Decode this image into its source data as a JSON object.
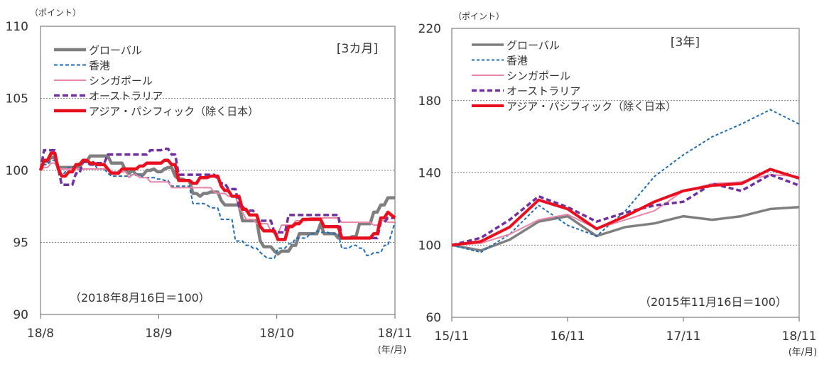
{
  "chart_data": [
    {
      "type": "line",
      "unit_label": "（ポイント）",
      "period_label": "[3カ月]",
      "note": "（2018年8月16日＝100）",
      "x_unit_label": "(年/月)",
      "ylim": [
        90,
        110
      ],
      "yticks": [
        "110",
        "105",
        "100",
        "95",
        "90"
      ],
      "xticks": [
        "18/8",
        "18/9",
        "18/10",
        "18/11"
      ],
      "grid": true,
      "legend_position": "top-left",
      "x": [
        0,
        5,
        10,
        15,
        20,
        25,
        30,
        35,
        40,
        45,
        50,
        55,
        60,
        65,
        70,
        75,
        80,
        85,
        90,
        95,
        100,
        105,
        110,
        115,
        120,
        125,
        130,
        135,
        140,
        145,
        150,
        155,
        160,
        165,
        170,
        175,
        180,
        185,
        190,
        195,
        200,
        205,
        210,
        215,
        220,
        225,
        230,
        235,
        240,
        245,
        250,
        255,
        260,
        265,
        270,
        275,
        280,
        285,
        290,
        295,
        300,
        305,
        310,
        315,
        320,
        325,
        330,
        335,
        340,
        345,
        350,
        355,
        360,
        365,
        370,
        375,
        380,
        385,
        390,
        395,
        400,
        405,
        410,
        415,
        420,
        425,
        430,
        435,
        440,
        445,
        450,
        455,
        460,
        465,
        470,
        475,
        480,
        485,
        490,
        495,
        500
      ],
      "series": [
        {
          "name": "グローバル",
          "color": "#7f7f7f",
          "width": 4.5,
          "dash": "",
          "values": [
            100,
            100.6,
            100.6,
            100.9,
            100.9,
            100.2,
            100.2,
            100.2,
            100.2,
            100.2,
            100.2,
            100.2,
            100.6,
            100.6,
            101,
            101,
            101,
            101,
            101,
            101,
            100.5,
            100.5,
            100.5,
            100.5,
            100,
            99.8,
            100,
            99.7,
            99.7,
            99.7,
            100,
            100,
            100.1,
            99.9,
            99.9,
            100.1,
            100.2,
            100.2,
            99.6,
            99.4,
            99.4,
            99.3,
            99.3,
            98.4,
            98.4,
            98.2,
            98.4,
            98.4,
            98.5,
            98.5,
            98.5,
            97.9,
            97.6,
            97.6,
            97.6,
            97.6,
            97.6,
            96.5,
            96.5,
            96.5,
            96.5,
            96.5,
            95.1,
            94.7,
            94.7,
            94.7,
            94.4,
            94.2,
            94.4,
            94.4,
            94.4,
            94.8,
            94.8,
            95.6,
            95.6,
            95.6,
            95.6,
            95.6,
            95.6,
            96.3,
            95.6,
            95.6,
            95.6,
            95.6,
            95.3,
            95.3,
            95.3,
            95.3,
            95.4,
            95.4,
            96.3,
            96.3,
            96.3,
            96.3,
            97.1,
            97.1,
            97.6,
            97.6,
            98.1,
            98.1,
            98.1
          ]
        },
        {
          "name": "香港",
          "color": "#1f6db4",
          "width": 2,
          "dash": "5 3",
          "values": [
            100,
            100.4,
            100.4,
            100.7,
            100.7,
            100.1,
            99.6,
            99.9,
            100.2,
            100.2,
            100.4,
            100.5,
            100.5,
            100.7,
            100.6,
            100.6,
            100.1,
            100.1,
            100.1,
            99.8,
            99.6,
            99.6,
            99.6,
            99.6,
            99.6,
            99.6,
            99.7,
            99.7,
            99.7,
            99.5,
            99.5,
            99.5,
            99.5,
            99.4,
            99.4,
            99.3,
            99.3,
            98.9,
            98.9,
            98.9,
            98.9,
            98.9,
            98.9,
            97.7,
            97.7,
            97.7,
            97.7,
            97.6,
            97.4,
            97.4,
            97.4,
            96.6,
            96.6,
            96.6,
            96.6,
            95.1,
            95.1,
            95.1,
            94.8,
            94.8,
            94.6,
            94.6,
            94.3,
            94.1,
            93.9,
            93.9,
            93.9,
            94.6,
            94.6,
            94.6,
            94.9,
            94.9,
            95.3,
            95.3,
            95.3,
            95.3,
            95.6,
            95.6,
            95.8,
            95.7,
            95.7,
            95.7,
            95.6,
            95.6,
            95.6,
            94.6,
            94.6,
            94.6,
            94.8,
            94.8,
            94.6,
            94.6,
            94.1,
            94.1,
            94.3,
            94.3,
            94.3,
            94.8,
            94.8,
            95.6,
            96.4
          ]
        },
        {
          "name": "シンガポール",
          "color": "#ea84a7",
          "width": 2,
          "dash": "",
          "values": [
            100,
            100.2,
            100.2,
            100.5,
            100.5,
            100.1,
            100.1,
            100.1,
            100.1,
            100.1,
            100.1,
            100.1,
            100.1,
            100.1,
            100.1,
            100.1,
            100.1,
            100.1,
            100.1,
            100.1,
            99.9,
            99.9,
            99.9,
            99.9,
            99.9,
            99.5,
            99.7,
            99.7,
            99.5,
            99.5,
            99.5,
            99.2,
            99.2,
            99.2,
            99.2,
            99.2,
            99.2,
            98.8,
            98.8,
            98.8,
            98.8,
            98.8,
            98.8,
            98.8,
            98.8,
            98.8,
            98.8,
            98.8,
            98.8,
            98.5,
            98.4,
            98.4,
            98.4,
            98.2,
            98.2,
            98.2,
            97.4,
            97.1,
            96.6,
            96.6,
            96.6,
            96.3,
            96.3,
            96.3,
            96.3,
            95.8,
            95.6,
            95.6,
            96.2,
            96.2,
            96.2,
            96.2,
            96.5,
            96.5,
            96.5,
            96.5,
            96.7,
            96.7,
            96.7,
            96.7,
            96.7,
            96.7,
            96.7,
            96.7,
            96.7,
            96.4,
            96.4,
            96.4,
            96.4,
            96.4,
            96.4,
            96.4,
            96.4,
            96.4,
            96.2,
            96.2,
            96.5,
            96.5,
            96.4,
            96.4,
            96.4
          ]
        },
        {
          "name": "オーストラリア",
          "color": "#7030a0",
          "width": 3.5,
          "dash": "8 4",
          "values": [
            100,
            101.4,
            101.4,
            101.4,
            101.4,
            100.1,
            99,
            99,
            99,
            99,
            99.8,
            99.8,
            100.6,
            100.6,
            100.4,
            100.4,
            100.5,
            100.5,
            100.5,
            101.1,
            101.1,
            101.1,
            101.1,
            101.1,
            101.1,
            101.1,
            101.1,
            101.1,
            101.1,
            101.1,
            101.1,
            101.4,
            101.4,
            101.4,
            101.4,
            101.5,
            101.5,
            101.1,
            101.1,
            99.7,
            99.7,
            99.7,
            99.7,
            99.7,
            99.7,
            99.7,
            99.7,
            99.7,
            99.7,
            99.7,
            99.4,
            99.1,
            99.1,
            98.7,
            98.7,
            98.7,
            97.5,
            97.5,
            97.2,
            97.2,
            97.2,
            96.8,
            96.5,
            96.5,
            96.5,
            96.5,
            95.7,
            95.7,
            95.7,
            95.7,
            96.9,
            96.9,
            96.9,
            96.9,
            96.9,
            96.9,
            96.9,
            96.9,
            96.9,
            96.9,
            96.9,
            96.9,
            96.9,
            96.9,
            96.9,
            95.3,
            95.3,
            95.3,
            95.3,
            95.3,
            95.3,
            95.3,
            95.3,
            95.3,
            95.3,
            95.3,
            96.4,
            96.4,
            96.7,
            96.7,
            96.7
          ]
        },
        {
          "name": "アジア・パシフィック（除く日本）",
          "color": "#e8101e",
          "width": 4.5,
          "dash": "",
          "values": [
            100,
            100.7,
            100.7,
            101.2,
            101.2,
            100.1,
            99.6,
            99.6,
            99.9,
            99.9,
            100.4,
            100.4,
            100.7,
            100.7,
            100.5,
            100.5,
            100.4,
            100.4,
            100.4,
            100.1,
            99.8,
            99.8,
            99.8,
            100.1,
            100.1,
            100.1,
            100.1,
            100.1,
            100.3,
            100.3,
            100.5,
            100.5,
            100.5,
            100.5,
            100.5,
            100.7,
            100.7,
            100.4,
            100.4,
            99.3,
            99.3,
            99.3,
            99.3,
            99.1,
            99.1,
            99.5,
            99.5,
            99.5,
            99.6,
            99.6,
            99.6,
            98.9,
            98.6,
            98.6,
            98.2,
            98.2,
            98.2,
            97.3,
            97.3,
            96.9,
            96.9,
            96.9,
            96.1,
            95.8,
            95.8,
            95.8,
            95.8,
            95.2,
            95.2,
            95.2,
            96.1,
            96.1,
            96.3,
            96.3,
            96.6,
            96.6,
            96.6,
            96.6,
            96.6,
            96.6,
            96.1,
            96.1,
            96.1,
            96.1,
            96.1,
            95.3,
            95.3,
            95.3,
            95.3,
            95.3,
            95.3,
            95.3,
            95.3,
            95.3,
            95.6,
            95.6,
            96.7,
            96.7,
            97.1,
            96.9,
            96.7
          ]
        }
      ]
    },
    {
      "type": "line",
      "unit_label": "（ポイント）",
      "period_label": "[3年]",
      "note": "（2015年11月16日＝100）",
      "x_unit_label": "(年/月)",
      "ylim": [
        60,
        220
      ],
      "yticks": [
        "220",
        "180",
        "140",
        "100",
        "60"
      ],
      "xticks": [
        "15/11",
        "16/11",
        "17/11",
        "18/11"
      ],
      "grid": true,
      "legend_position": "top-left",
      "x": [
        0,
        3,
        6,
        9,
        12,
        15,
        18,
        21,
        24,
        27,
        30,
        33,
        36
      ],
      "series": [
        {
          "name": "グローバル",
          "color": "#7f7f7f",
          "width": 3.5,
          "dash": "",
          "values": [
            100,
            97,
            103,
            113,
            116,
            105,
            110,
            112,
            116,
            114,
            116,
            120,
            121
          ]
        },
        {
          "name": "香港",
          "color": "#1f6db4",
          "width": 2,
          "dash": "4 3",
          "values": [
            100,
            96,
            106,
            122,
            111,
            105,
            119,
            138,
            150,
            160,
            167,
            175,
            167
          ]
        },
        {
          "name": "シンガポール",
          "color": "#ea84a7",
          "width": 2,
          "dash": "",
          "values": [
            100,
            101,
            106,
            114,
            117,
            109,
            114,
            119,
            130,
            134,
            135,
            139,
            138
          ]
        },
        {
          "name": "オーストラリア",
          "color": "#7030a0",
          "width": 3.5,
          "dash": "7 4",
          "values": [
            100,
            104,
            114,
            127,
            121,
            113,
            118,
            122,
            124,
            134,
            130,
            139,
            133
          ]
        },
        {
          "name": "アジア・パシフィック（除く日本）",
          "color": "#e8101e",
          "width": 4,
          "dash": "",
          "values": [
            100,
            102,
            110,
            125,
            120,
            109,
            116,
            124,
            130,
            133,
            134,
            142,
            137
          ]
        }
      ]
    }
  ]
}
